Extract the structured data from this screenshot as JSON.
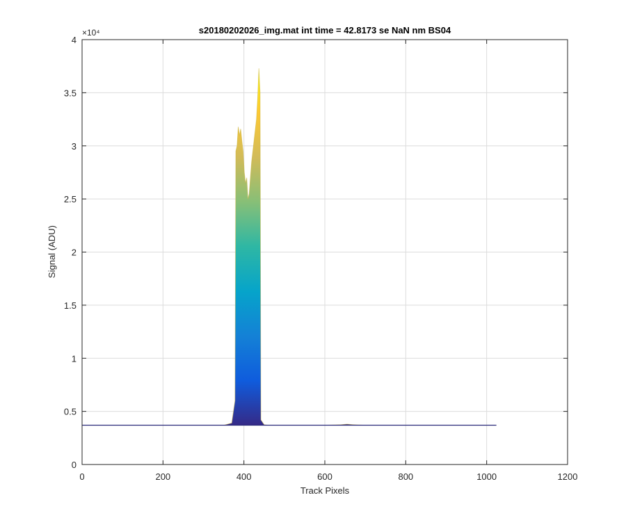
{
  "chart_data": {
    "type": "area",
    "title": "s20180202026_img.mat int time = 42.8173 se  NaN nm BS04",
    "xlabel": "Track Pixels",
    "ylabel": "Signal (ADU)",
    "xlim": [
      0,
      1200
    ],
    "ylim": [
      0,
      40000
    ],
    "x_ticks": [
      0,
      200,
      400,
      600,
      800,
      1000,
      1200
    ],
    "x_tick_labels": [
      "0",
      "200",
      "400",
      "600",
      "800",
      "1000",
      "1200"
    ],
    "y_ticks": [
      0,
      5000,
      10000,
      15000,
      20000,
      25000,
      30000,
      35000,
      40000
    ],
    "y_tick_labels": [
      "0",
      "0.5",
      "1",
      "1.5",
      "2",
      "2.5",
      "3",
      "3.5",
      "4"
    ],
    "y_exponent_label": "×10⁴",
    "grid": true,
    "legend": "none",
    "colormap": "parula",
    "colormap_stops": [
      "#352a87",
      "#0f5cdd",
      "#1481d6",
      "#06a4ca",
      "#2eb7a4",
      "#87bf77",
      "#d1bb59",
      "#fec832",
      "#f9fb0e"
    ],
    "baseline": 3700,
    "x_range": [
      0,
      1024
    ],
    "envelope": {
      "x": [
        0,
        350,
        370,
        378,
        380,
        383,
        386,
        389,
        392,
        395,
        398,
        401,
        404,
        407,
        410,
        413,
        416,
        419,
        422,
        425,
        428,
        431,
        434,
        437,
        440,
        442,
        450,
        460,
        600,
        640,
        655,
        670,
        700,
        1024
      ],
      "y": [
        3700,
        3700,
        3900,
        6000,
        29500,
        30000,
        31800,
        31000,
        31600,
        30500,
        29500,
        27500,
        26500,
        27000,
        25000,
        25500,
        27000,
        28500,
        29500,
        30500,
        31500,
        32500,
        34500,
        37300,
        35000,
        4200,
        3750,
        3700,
        3700,
        3750,
        3800,
        3750,
        3700,
        3700
      ]
    }
  }
}
